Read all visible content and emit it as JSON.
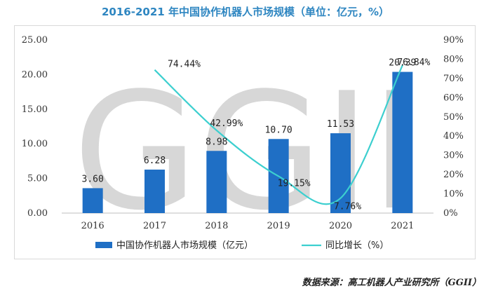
{
  "chart_data": {
    "type": "bar",
    "title": "2016-2021 年中国协作机器人市场规模（单位：亿元，%）",
    "categories": [
      "2016",
      "2017",
      "2018",
      "2019",
      "2020",
      "2021"
    ],
    "series": [
      {
        "name": "中国协作机器人市场规模（亿元）",
        "type": "bar",
        "axis": "left",
        "values": [
          3.6,
          6.28,
          8.98,
          10.7,
          11.53,
          20.39
        ],
        "labels": [
          "3.60",
          "6.28",
          "8.98",
          "10.70",
          "11.53",
          "20.39"
        ]
      },
      {
        "name": "同比增长（%）",
        "type": "line",
        "axis": "right",
        "values": [
          null,
          74.44,
          42.99,
          19.15,
          7.76,
          76.84
        ],
        "labels": [
          "",
          "74.44%",
          "42.99%",
          "19.15%",
          "7.76%",
          "76.84%"
        ]
      }
    ],
    "y_left": {
      "ylim": [
        0,
        25
      ],
      "ticks": [
        "0.00",
        "5.00",
        "10.00",
        "15.00",
        "20.00",
        "25.00"
      ]
    },
    "y_right": {
      "ylim": [
        0,
        90
      ],
      "ticks": [
        "0%",
        "10%",
        "20%",
        "30%",
        "40%",
        "50%",
        "60%",
        "70%",
        "80%",
        "90%"
      ]
    },
    "legend": "bottom",
    "watermark": "GGII",
    "colors": {
      "bar": "#1f6fc5",
      "line": "#3ccfcf",
      "title": "#2e86c1"
    }
  },
  "source": "数据来源：高工机器人产业研究所（GGII）"
}
